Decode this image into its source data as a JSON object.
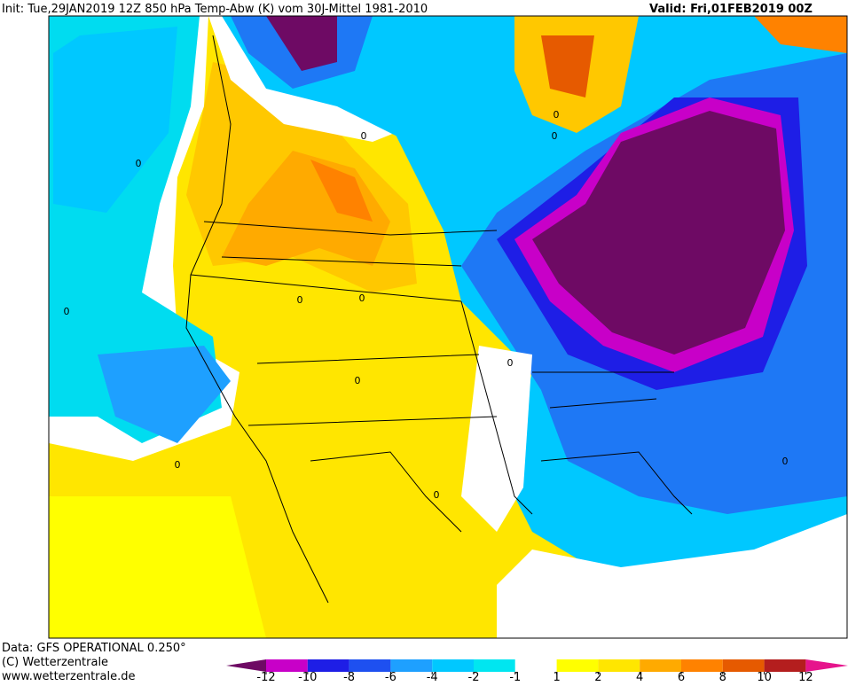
{
  "header": {
    "init": "Init: Tue,29JAN2019 12Z 850 hPa Temp-Abw (K) vom 30J-Mittel 1981-2010",
    "valid": "Valid: Fri,01FEB2019 00Z"
  },
  "footer": {
    "source": "Data: GFS OPERATIONAL 0.250°",
    "copyright": "(C) Wetterzentrale",
    "url": "www.wetterzentrale.de"
  },
  "map": {
    "contour_labels": [
      "0",
      "0",
      "0",
      "0",
      "0",
      "0",
      "0",
      "0",
      "0",
      "0",
      "0",
      "0"
    ]
  },
  "colorbar": {
    "ticks": [
      -12,
      -10,
      -8,
      -6,
      -4,
      -2,
      -1,
      1,
      2,
      4,
      6,
      8,
      10,
      12
    ],
    "colors": [
      "#6e0a64",
      "#c800c8",
      "#1e1ee6",
      "#1e50f0",
      "#1e78f5",
      "#1ea0ff",
      "#00c8ff",
      "#00e6f0",
      "#ffffff",
      "#ffff00",
      "#ffe600",
      "#ffc800",
      "#ffaa00",
      "#ff8200",
      "#e65a00",
      "#b41e1e",
      "#e6148c"
    ]
  }
}
